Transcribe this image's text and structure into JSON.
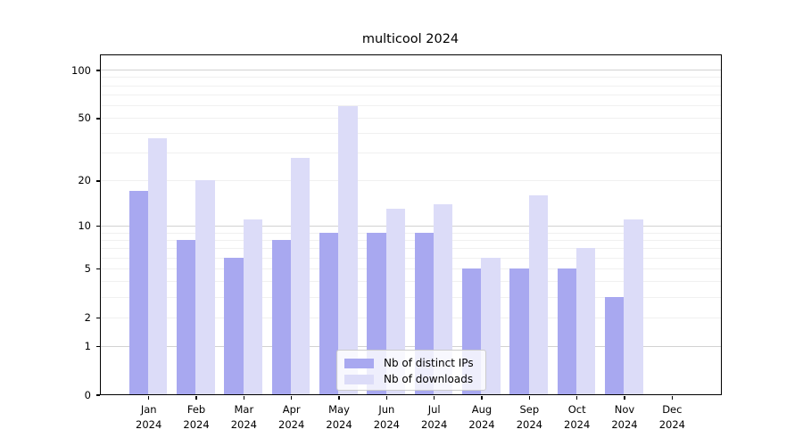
{
  "chart_data": {
    "type": "bar",
    "title": "multicool 2024",
    "categories": [
      "Jan",
      "Feb",
      "Mar",
      "Apr",
      "May",
      "Jun",
      "Jul",
      "Aug",
      "Sep",
      "Oct",
      "Nov",
      "Dec"
    ],
    "category_year": "2024",
    "series": [
      {
        "name": "Nb of distinct IPs",
        "color": "#a8a8f0",
        "values": [
          17,
          8,
          6,
          8,
          9,
          9,
          9,
          5,
          5,
          5,
          3,
          0
        ]
      },
      {
        "name": "Nb of downloads",
        "color": "#dcdcf8",
        "values": [
          37,
          20,
          11,
          28,
          59,
          13,
          14,
          6,
          16,
          7,
          11,
          0
        ]
      }
    ],
    "yscale": "log1p",
    "ylim": [
      0,
      126
    ],
    "yticks": [
      0,
      1,
      2,
      5,
      10,
      20,
      50,
      100
    ],
    "grid_minor": [
      2,
      3,
      4,
      5,
      6,
      7,
      8,
      9,
      20,
      30,
      40,
      50,
      60,
      70,
      80,
      90
    ],
    "grid_major": [
      1,
      10,
      100
    ],
    "legend_position": "lower center",
    "colors": {
      "grid_minor": "#f0f0f0",
      "grid_major": "#d2d2d2",
      "axis": "#000000",
      "figure_background": "#ffffff"
    }
  }
}
